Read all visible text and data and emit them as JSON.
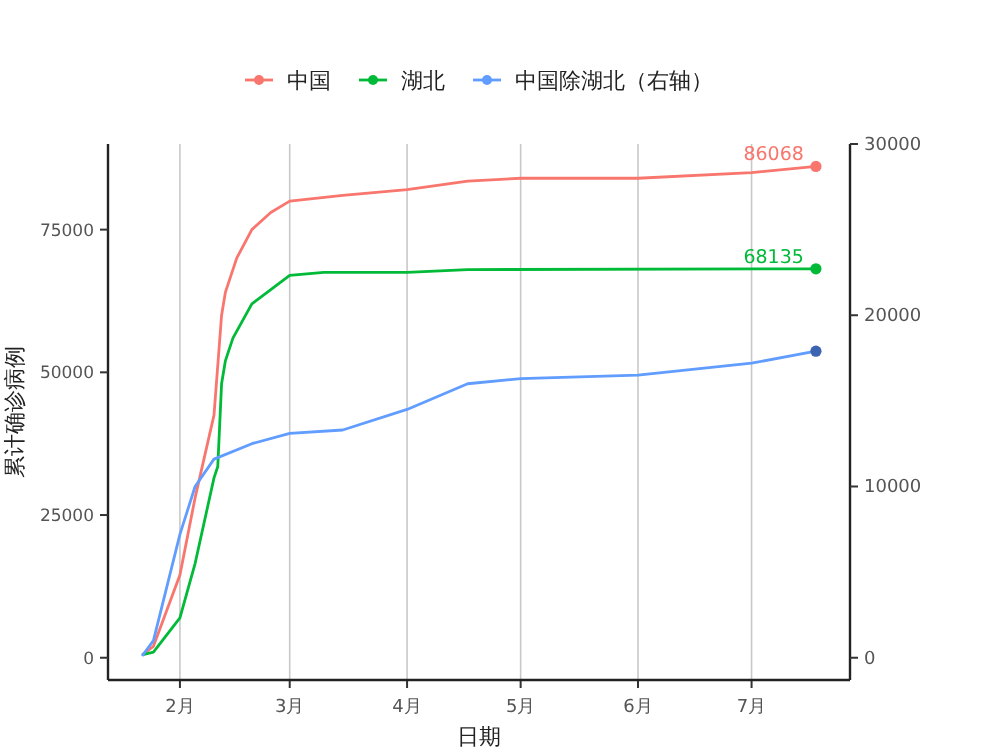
{
  "chart_data": {
    "type": "line",
    "xlabel": "日期",
    "ylabel": "累计确诊病例",
    "xlim": [
      "--01-13",
      "--07-27"
    ],
    "ylim": [
      -3900,
      90000
    ],
    "y2lim": [
      -1300,
      30000
    ],
    "xticks": [
      {
        "value": "--02-01",
        "label": "2月"
      },
      {
        "value": "--03-01",
        "label": "3月"
      },
      {
        "value": "--04-01",
        "label": "4月"
      },
      {
        "value": "--05-01",
        "label": "5月"
      },
      {
        "value": "--06-01",
        "label": "6月"
      },
      {
        "value": "--07-01",
        "label": "7月"
      }
    ],
    "yticks": [
      0,
      25000,
      50000,
      75000
    ],
    "y2ticks": [
      0,
      10000,
      20000,
      30000
    ],
    "grid": "x",
    "legend": "top",
    "line_style": "solid",
    "series": [
      {
        "name": "中国",
        "color": "#f8766d",
        "x": [
          "--01-22",
          "--01-25",
          "--02-01",
          "--02-05",
          "--02-10",
          "--02-12",
          "--02-13",
          "--02-16",
          "--02-20",
          "--02-25",
          "--03-01",
          "--03-15",
          "--04-01",
          "--04-17",
          "--05-01",
          "--06-01",
          "--07-01",
          "--07-18"
        ],
        "values": [
          500,
          2000,
          14500,
          28000,
          42500,
          60000,
          64000,
          70000,
          75000,
          78000,
          80000,
          81000,
          82000,
          83500,
          84000,
          84000,
          85000,
          86068
        ]
      },
      {
        "name": "湖北",
        "color": "#00ba38",
        "x": [
          "--01-22",
          "--01-25",
          "--02-01",
          "--02-05",
          "--02-10",
          "--02-11",
          "--02-12",
          "--02-13",
          "--02-15",
          "--02-20",
          "--03-01",
          "--03-10",
          "--04-01",
          "--04-17",
          "--07-18"
        ],
        "values": [
          500,
          1000,
          7000,
          16500,
          31500,
          33500,
          48000,
          52000,
          56000,
          62000,
          67000,
          67500,
          67500,
          68000,
          68135
        ]
      },
      {
        "name": "中国除湖北（右轴）",
        "color": "#619cff",
        "axis": "y2",
        "x": [
          "--01-22",
          "--01-25",
          "--02-01",
          "--02-05",
          "--02-10",
          "--02-20",
          "--03-01",
          "--03-15",
          "--04-01",
          "--04-17",
          "--05-01",
          "--06-01",
          "--07-01",
          "--07-18"
        ],
        "values": [
          100,
          1000,
          7200,
          10000,
          11600,
          12500,
          13100,
          13300,
          14500,
          16000,
          16300,
          16500,
          17200,
          17900
        ]
      },
      {
        "type": "scatter",
        "marker": "circle",
        "color": "#f8766d",
        "x": [
          "--07-18"
        ],
        "values": [
          86068
        ]
      },
      {
        "type": "scatter",
        "marker": "circle",
        "color": "#00ba38",
        "x": [
          "--07-18"
        ],
        "values": [
          68135
        ]
      },
      {
        "type": "scatter",
        "marker": "circle",
        "color": "#3d64b0",
        "axis": "y2",
        "x": [
          "--07-18"
        ],
        "values": [
          17900
        ]
      }
    ],
    "annotations": [
      {
        "text": "86068",
        "x": "--07-18",
        "y": 86068
      },
      {
        "text": "68135",
        "x": "--07-18",
        "y": 68135
      }
    ]
  }
}
